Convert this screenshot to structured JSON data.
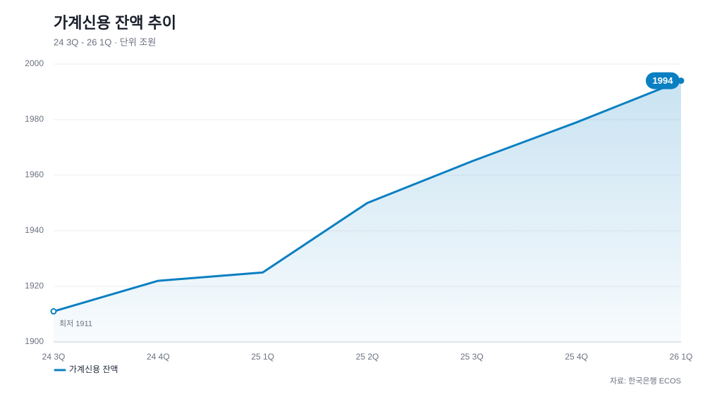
{
  "chart_data": {
    "type": "area-line",
    "title": "가계신용 잔액 추이",
    "subtitle": "24 3Q - 26 1Q · 단위 조원",
    "categories": [
      "24 3Q",
      "24 4Q",
      "25 1Q",
      "25 2Q",
      "25 3Q",
      "25 4Q",
      "26 1Q"
    ],
    "series": [
      {
        "name": "가계신용 잔액",
        "color": "#0a7fc2",
        "values": [
          1911,
          1922,
          1925,
          1950,
          1965,
          1979,
          1994
        ],
        "value_labels": [
          "최저 1911",
          null,
          null,
          null,
          null,
          null,
          "1994"
        ]
      }
    ],
    "ylim": [
      1900,
      2000
    ],
    "yticks": [
      1900,
      1920,
      1940,
      1960,
      1980,
      2000
    ],
    "grid": true,
    "legend": "bottom-left",
    "source": "자료: 한국은행 ECOS"
  }
}
